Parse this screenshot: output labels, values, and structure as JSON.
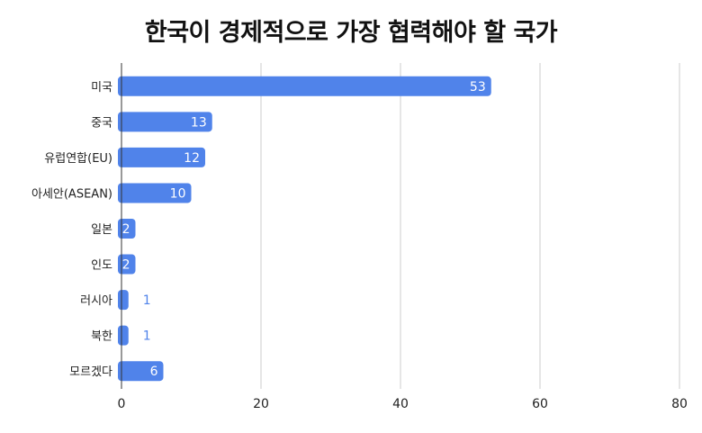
{
  "chart_data": {
    "type": "bar",
    "orientation": "horizontal",
    "title": "한국이 경제적으로 가장 협력해야 할 국가",
    "xlabel": "",
    "ylabel": "",
    "categories": [
      "미국",
      "중국",
      "유럽연합(EU)",
      "아세안(ASEAN)",
      "일본",
      "인도",
      "러시아",
      "북한",
      "모르겠다"
    ],
    "values": [
      53,
      13,
      12,
      10,
      2,
      2,
      1,
      1,
      6
    ],
    "xlim": [
      0,
      80
    ],
    "x_ticks": [
      0,
      20,
      40,
      60,
      80
    ],
    "grid": true,
    "legend": "none",
    "data_labels": true,
    "colors": {
      "bar": "#5083EA",
      "label_inside": "#ffffff",
      "label_outside": "#5083EA",
      "grid": "#cccccc",
      "axis": "#333333"
    }
  }
}
